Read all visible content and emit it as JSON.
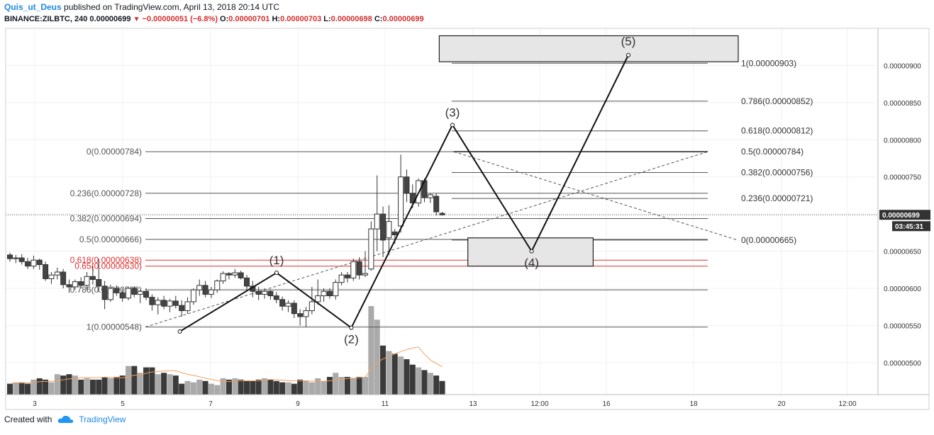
{
  "header": {
    "user": "Quis_ut_Deus",
    "published": "published on TradingView.com, April 13, 2018 20:14 UTC",
    "symbol": "BINANCE:ZILBTC, 240",
    "last": "0.00000699",
    "arrow": "▼",
    "change": "−0.00000051 (−6.8%)",
    "o_label": "O:",
    "o": "0.00000701",
    "h_label": "H:",
    "h": "0.00000703",
    "l_label": "L:",
    "l": "0.00000698",
    "c_label": "C:",
    "c": "0.00000699"
  },
  "footer": {
    "created": "Created with",
    "brand": "TradingView",
    "logo_icon": "tradingview-cloud-icon"
  },
  "colors": {
    "up": "#ffffff",
    "down": "#444444",
    "red_fib": "#e03030",
    "volume": "#3a3a3a",
    "volume_up": "#aaaaaa",
    "ma": "#f0a060",
    "badge": "#333333"
  },
  "chart_data": {
    "type": "candlestick",
    "price_axis": {
      "ylim": [
        4.57e-06,
        9.5e-06
      ],
      "ticks": [
        "0.00000900",
        "0.00000850",
        "0.00000800",
        "0.00000750",
        "0.00000700",
        "0.00000650",
        "0.00000600",
        "0.00000550",
        "0.00000500"
      ]
    },
    "time_axis": {
      "ticks": [
        "3",
        "5",
        "7",
        "9",
        "11",
        "13",
        "12:00",
        "16",
        "18",
        "20",
        "12:00"
      ]
    },
    "last_price_badge": "0.00000699",
    "countdown_badge": "03:45:31",
    "candles": [
      [
        6.45e-06,
        6.48e-06,
        6.36e-06,
        6.4e-06
      ],
      [
        6.4e-06,
        6.45e-06,
        6.34e-06,
        6.41e-06
      ],
      [
        6.41e-06,
        6.46e-06,
        6.32e-06,
        6.36e-06
      ],
      [
        6.36e-06,
        6.41e-06,
        6.26e-06,
        6.3e-06
      ],
      [
        6.3e-06,
        6.44e-06,
        6.26e-06,
        6.38e-06
      ],
      [
        6.38e-06,
        6.4e-06,
        6.25e-06,
        6.32e-06
      ],
      [
        6.32e-06,
        6.36e-06,
        6.1e-06,
        6.13e-06
      ],
      [
        6.13e-06,
        6.22e-06,
        6.06e-06,
        6.18e-06
      ],
      [
        6.18e-06,
        6.28e-06,
        6.12e-06,
        6.22e-06
      ],
      [
        6.22e-06,
        6.26e-06,
        6e-06,
        6.05e-06
      ],
      [
        6.05e-06,
        6.12e-06,
        5.94e-06,
        6.02e-06
      ],
      [
        6.02e-06,
        6.12e-06,
        5.98e-06,
        6.09e-06
      ],
      [
        6.09e-06,
        6.15e-06,
        6e-06,
        6.04e-06
      ],
      [
        6.04e-06,
        6.22e-06,
        5.98e-06,
        6.16e-06
      ],
      [
        6.16e-06,
        6.3e-06,
        6.05e-06,
        6.12e-06
      ],
      [
        6.12e-06,
        6.4e-06,
        5.95e-06,
        6.03e-06
      ],
      [
        6.03e-06,
        6.1e-06,
        5.72e-06,
        5.85e-06
      ],
      [
        5.85e-06,
        6.05e-06,
        5.82e-06,
        6e-06
      ],
      [
        6e-06,
        6.04e-06,
        5.9e-06,
        5.94e-06
      ],
      [
        5.94e-06,
        6e-06,
        5.82e-06,
        5.87e-06
      ],
      [
        5.87e-06,
        6.02e-06,
        5.84e-06,
        6e-06
      ],
      [
        6e-06,
        6.03e-06,
        5.88e-06,
        5.92e-06
      ],
      [
        5.92e-06,
        5.98e-06,
        5.8e-06,
        5.96e-06
      ],
      [
        5.96e-06,
        6e-06,
        5.84e-06,
        5.88e-06
      ],
      [
        5.88e-06,
        5.92e-06,
        5.7e-06,
        5.78e-06
      ],
      [
        5.78e-06,
        5.88e-06,
        5.65e-06,
        5.84e-06
      ],
      [
        5.84e-06,
        5.9e-06,
        5.72e-06,
        5.76e-06
      ],
      [
        5.76e-06,
        5.86e-06,
        5.68e-06,
        5.83e-06
      ],
      [
        5.83e-06,
        5.9e-06,
        5.73e-06,
        5.77e-06
      ],
      [
        5.77e-06,
        5.84e-06,
        5.62e-06,
        5.7e-06
      ],
      [
        5.7e-06,
        5.88e-06,
        5.66e-06,
        5.82e-06
      ],
      [
        5.82e-06,
        6e-06,
        5.78e-06,
        5.98e-06
      ],
      [
        5.98e-06,
        6.12e-06,
        5.9e-06,
        6.04e-06
      ],
      [
        6.04e-06,
        6.1e-06,
        5.88e-06,
        5.92e-06
      ],
      [
        5.92e-06,
        6.02e-06,
        5.87e-06,
        5.98e-06
      ],
      [
        5.98e-06,
        6.12e-06,
        5.94e-06,
        6.1e-06
      ],
      [
        6.1e-06,
        6.23e-06,
        6.06e-06,
        6.2e-06
      ],
      [
        6.2e-06,
        6.22e-06,
        6.12e-06,
        6.18e-06
      ],
      [
        6.18e-06,
        6.26e-06,
        6.14e-06,
        6.21e-06
      ],
      [
        6.21e-06,
        6.24e-06,
        6.12e-06,
        6.14e-06
      ],
      [
        6.14e-06,
        6.18e-06,
        5.98e-06,
        6.03e-06
      ],
      [
        6.03e-06,
        6.1e-06,
        5.88e-06,
        5.96e-06
      ],
      [
        5.96e-06,
        6.02e-06,
        5.84e-06,
        5.92e-06
      ],
      [
        5.92e-06,
        6e-06,
        5.86e-06,
        5.96e-06
      ],
      [
        5.96e-06,
        5.98e-06,
        5.85e-06,
        5.9e-06
      ],
      [
        5.9e-06,
        5.95e-06,
        5.8e-06,
        5.85e-06
      ],
      [
        5.85e-06,
        5.89e-06,
        5.7e-06,
        5.76e-06
      ],
      [
        5.76e-06,
        5.84e-06,
        5.68e-06,
        5.8e-06
      ],
      [
        5.8e-06,
        5.84e-06,
        5.6e-06,
        5.66e-06
      ],
      [
        5.66e-06,
        5.72e-06,
        5.5e-06,
        5.62e-06
      ],
      [
        5.62e-06,
        5.75e-06,
        5.48e-06,
        5.7e-06
      ],
      [
        5.7e-06,
        6.02e-06,
        5.65e-06,
        5.82e-06
      ],
      [
        5.82e-06,
        6.12e-06,
        5.78e-06,
        5.9e-06
      ],
      [
        5.9e-06,
        6e-06,
        5.82e-06,
        5.96e-06
      ],
      [
        5.96e-06,
        6e-06,
        5.86e-06,
        5.9e-06
      ],
      [
        5.9e-06,
        6.12e-06,
        5.85e-06,
        6.08e-06
      ],
      [
        6.08e-06,
        6.22e-06,
        6.04e-06,
        6.18e-06
      ],
      [
        6.18e-06,
        6.22e-06,
        6.08e-06,
        6.14e-06
      ],
      [
        6.14e-06,
        6.4e-06,
        6.1e-06,
        6.36e-06
      ],
      [
        6.36e-06,
        6.42e-06,
        6.12e-06,
        6.18e-06
      ],
      [
        6.18e-06,
        6.5e-06,
        6.15e-06,
        6.2e-06
      ],
      [
        6.26e-06,
        6.9e-06,
        6.24e-06,
        6.8e-06
      ],
      [
        6.8e-06,
        7.52e-06,
        6.5e-06,
        7e-06
      ],
      [
        7e-06,
        7.1e-06,
        6.42e-06,
        6.65e-06
      ],
      [
        6.68e-06,
        7.12e-06,
        6.45e-06,
        6.9e-06
      ],
      [
        6.76e-06,
        6.8e-06,
        6.6e-06,
        6.72e-06
      ],
      [
        6.84e-06,
        7.8e-06,
        6.75e-06,
        7.5e-06
      ],
      [
        7.5e-06,
        7.6e-06,
        7.16e-06,
        7.28e-06
      ],
      [
        7.28e-06,
        7.4e-06,
        7.08e-06,
        7.15e-06
      ],
      [
        7.15e-06,
        7.48e-06,
        7.1e-06,
        7.45e-06
      ],
      [
        7.45e-06,
        7.48e-06,
        7.16e-06,
        7.22e-06
      ],
      [
        7.22e-06,
        7.28e-06,
        7.15e-06,
        7.26e-06
      ],
      [
        7.24e-06,
        7.28e-06,
        6.98e-06,
        7.03e-06
      ],
      [
        7.01e-06,
        7.03e-06,
        6.98e-06,
        6.99e-06
      ]
    ],
    "volume": [
      8,
      9,
      9,
      8,
      11,
      12,
      11,
      9,
      15,
      14,
      15,
      14,
      11,
      12,
      11,
      11,
      13,
      12,
      13,
      14,
      21,
      21,
      16,
      20,
      20,
      15,
      16,
      15,
      14,
      8,
      10,
      9,
      11,
      10,
      8,
      7,
      12,
      11,
      12,
      11,
      10,
      10,
      11,
      12,
      11,
      10,
      9,
      9,
      8,
      11,
      10,
      9,
      12,
      10,
      13,
      16,
      13,
      13,
      12,
      13,
      13,
      65,
      55,
      36,
      32,
      30,
      28,
      26,
      22,
      20,
      18,
      16,
      14,
      10
    ],
    "fib_left": {
      "levels": [
        {
          "label": "0(0.00000784)",
          "value": 7.84e-06
        },
        {
          "label": "0.236(0.00000728)",
          "value": 7.28e-06
        },
        {
          "label": "0.382(0.00000694)",
          "value": 6.94e-06
        },
        {
          "label": "0.5(0.00000666)",
          "value": 6.66e-06
        },
        {
          "label": "0.618(0.00000638)",
          "value": 6.38e-06,
          "red": true
        },
        {
          "label": "0.65(0.00000630)",
          "value": 6.3e-06,
          "red": true
        },
        {
          "label": "0.786(0.00000598)",
          "value": 5.98e-06
        },
        {
          "label": "1(0.00000548)",
          "value": 5.48e-06
        }
      ]
    },
    "fib_right": {
      "levels": [
        {
          "label": "1(0.00000903)",
          "value": 9.03e-06
        },
        {
          "label": "0.786(0.00000852)",
          "value": 8.52e-06
        },
        {
          "label": "0.618(0.00000812)",
          "value": 8.12e-06
        },
        {
          "label": "0.5(0.00000784)",
          "value": 7.84e-06
        },
        {
          "label": "0.382(0.00000756)",
          "value": 7.56e-06
        },
        {
          "label": "0.236(0.00000721)",
          "value": 7.21e-06
        },
        {
          "label": "0(0.00000665)",
          "value": 6.65e-06
        }
      ]
    },
    "wave_labels": [
      "(1)",
      "(2)",
      "(3)",
      "(4)",
      "(5)"
    ],
    "wave_points": [
      {
        "bar": 6.3,
        "price": 5.42e-06
      },
      {
        "bar": 8.5,
        "price": 6.21e-06
      },
      {
        "bar": 10.2,
        "price": 5.47e-06
      },
      {
        "bar": 12.5,
        "price": 8.2e-06
      },
      {
        "bar": 14.3,
        "price": 6.5e-06
      },
      {
        "bar": 16.5,
        "price": 9.14e-06
      }
    ],
    "target_zones": [
      {
        "from_bar": 12.85,
        "to_bar": 15.7,
        "low": 6.3e-06,
        "high": 6.68e-06
      },
      {
        "from_bar": 12.2,
        "to_bar": 19.0,
        "low": 9.05e-06,
        "high": 9.4e-06
      }
    ]
  }
}
